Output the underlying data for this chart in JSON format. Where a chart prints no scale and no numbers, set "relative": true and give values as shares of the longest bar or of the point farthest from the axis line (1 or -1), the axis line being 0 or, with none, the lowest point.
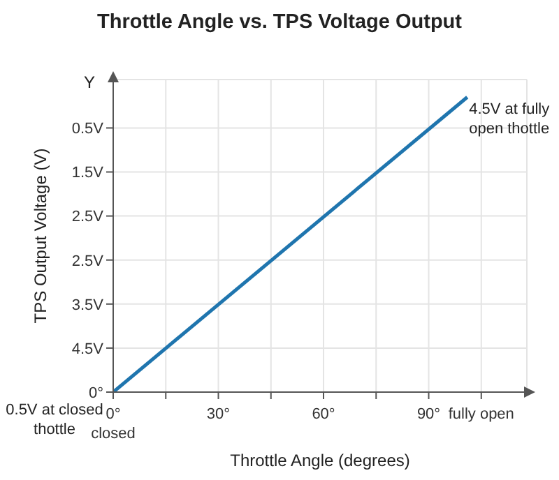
{
  "chart_data": {
    "type": "line",
    "title": "Throttle Angle vs. TPS Voltage Output",
    "xlabel": "Throttle Angle (degrees)",
    "ylabel": "TPS Output Voltage (V)",
    "x": [
      0,
      101
    ],
    "series": [
      {
        "color": "#1f75ae",
        "values": [
          0,
          1
        ]
      }
    ],
    "relative": true,
    "xlim": [
      0,
      118
    ],
    "xticks": [
      {
        "value": 0,
        "label": "0°\nclosed"
      },
      {
        "value": 15,
        "label": null
      },
      {
        "value": 30,
        "label": "30°"
      },
      {
        "value": 45,
        "label": null
      },
      {
        "value": 60,
        "label": "60°"
      },
      {
        "value": 75,
        "label": null
      },
      {
        "value": 90,
        "label": "90°"
      },
      {
        "value": 105,
        "label": "fully open"
      }
    ],
    "grid": true,
    "marker": "none",
    "line_style": "solid",
    "annotations": [
      "Y",
      "0.5V at closed\nthottle",
      {
        "text": "4.5V at fully\nopen thottle",
        "x": 101,
        "y": 1
      },
      "0°",
      "4.5V",
      "3.5V",
      "2.5V",
      "2.5V",
      "1.5V",
      "0.5V"
    ]
  }
}
